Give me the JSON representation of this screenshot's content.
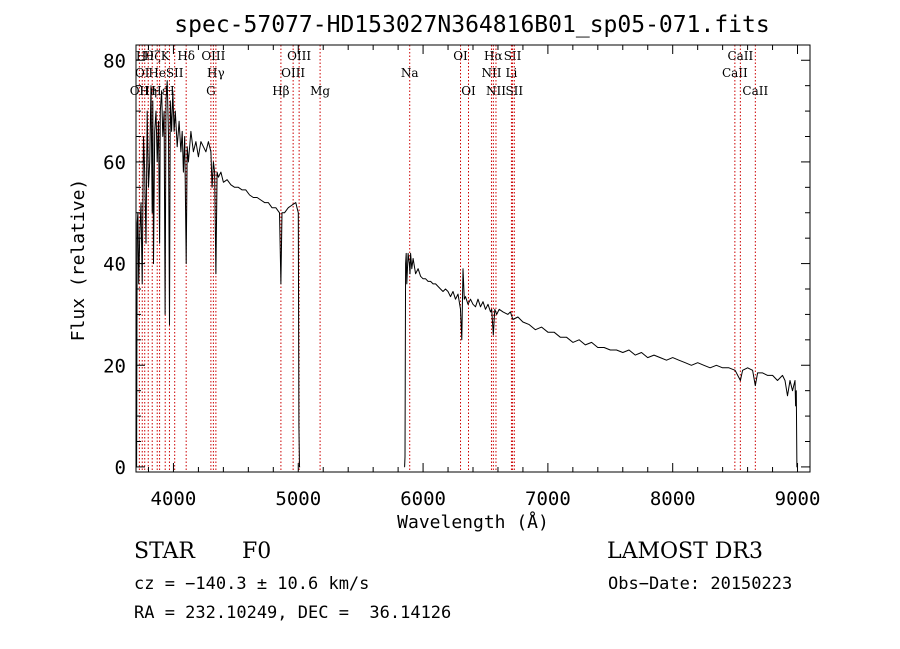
{
  "chart_data": {
    "type": "line",
    "title": "spec-57077-HD153027N364816B01_sp05-071.fits",
    "xlabel": "Wavelength (Å)",
    "ylabel": "Flux (relative)",
    "xlim": [
      3700,
      9100
    ],
    "ylim": [
      -1,
      83
    ],
    "xticks": [
      4000,
      5000,
      6000,
      7000,
      8000,
      9000
    ],
    "yticks": [
      0,
      20,
      40,
      60,
      80
    ],
    "grid": false,
    "series": [
      {
        "name": "spectrum",
        "segments": [
          {
            "x": [
              3700,
              3705,
              3710,
              3715,
              3722,
              3730,
              3740,
              3750,
              3760,
              3770,
              3780,
              3790,
              3800,
              3810,
              3820,
              3830,
              3835,
              3840,
              3850,
              3860,
              3870,
              3880,
              3889,
              3895,
              3905,
              3915,
              3925,
              3933,
              3940,
              3950,
              3960,
              3968,
              3975,
              3985,
              3995,
              4005,
              4015,
              4030,
              4045,
              4060,
              4070,
              4080,
              4090,
              4102,
              4110,
              4120,
              4140,
              4160,
              4180,
              4200,
              4220,
              4240,
              4260,
              4280,
              4300,
              4310,
              4320,
              4330,
              4340,
              4350,
              4360,
              4380,
              4400,
              4430,
              4460,
              4490,
              4520,
              4550,
              4580,
              4610,
              4640,
              4670,
              4700,
              4730,
              4760,
              4790,
              4820,
              4850,
              4861,
              4870,
              4890,
              4920,
              4950,
              4980,
              4990,
              5000,
              5005,
              5010,
              5015
            ],
            "y": [
              12,
              0,
              48,
              50,
              36,
              45,
              52,
              36,
              65,
              58,
              44,
              70,
              55,
              60,
              75,
              50,
              72,
              40,
              66,
              70,
              60,
              68,
              44,
              70,
              74,
              65,
              70,
              30,
              72,
              76,
              65,
              28,
              72,
              66,
              74,
              66,
              70,
              63,
              68,
              62,
              66,
              58,
              65,
              40,
              63,
              60,
              66,
              62,
              64,
              61,
              64,
              63,
              62,
              64,
              62,
              55,
              60,
              58,
              38,
              58,
              57,
              58,
              56,
              56.5,
              55.5,
              55,
              55,
              54.5,
              54.5,
              53.5,
              53,
              53,
              52.5,
              52,
              52,
              51,
              51,
              50,
              36,
              50,
              50,
              51,
              51.5,
              52,
              51,
              50,
              8,
              0,
              0
            ]
          },
          {
            "x": [
              5850,
              5852,
              5855,
              5860,
              5865,
              5870,
              5880,
              5890,
              5895,
              5900,
              5910,
              5920,
              5940,
              5960,
              5980,
              6000,
              6020,
              6040,
              6060,
              6080,
              6100,
              6120,
              6140,
              6160,
              6180,
              6200,
              6220,
              6240,
              6260,
              6280,
              6300,
              6310,
              6320,
              6330,
              6340,
              6360,
              6380,
              6400,
              6420,
              6440,
              6460,
              6480,
              6500,
              6520,
              6540,
              6550,
              6563,
              6575,
              6590,
              6610,
              6640,
              6680,
              6700,
              6720,
              6760,
              6800,
              6850,
              6900,
              6950,
              7000,
              7050,
              7100,
              7150,
              7200,
              7250,
              7300,
              7350,
              7400,
              7450,
              7500,
              7550,
              7600,
              7650,
              7700,
              7750,
              7800,
              7850,
              7900,
              7950,
              8000,
              8050,
              8100,
              8150,
              8200,
              8250,
              8300,
              8350,
              8400,
              8450,
              8500,
              8542,
              8560,
              8600,
              8640,
              8662,
              8680,
              8720,
              8760,
              8800,
              8840,
              8880,
              8900,
              8920,
              8940,
              8960,
              8980,
              8985,
              8990,
              8995,
              9000
            ],
            "y": [
              0,
              0,
              2,
              40,
              42,
              36,
              42,
              40,
              38,
              42,
              39,
              41,
              38,
              39,
              37.5,
              37,
              37,
              36.5,
              36.5,
              36,
              36,
              35.5,
              35,
              34.5,
              35,
              34.5,
              33.5,
              34.5,
              33,
              34,
              31,
              25,
              39,
              33,
              33.5,
              32,
              33,
              32,
              31.5,
              33,
              31.5,
              32.5,
              31,
              32,
              30.5,
              31,
              26,
              31,
              30,
              31,
              30.5,
              30,
              30.5,
              29,
              29.5,
              28.5,
              28,
              27,
              27.5,
              26.5,
              26.5,
              25.5,
              25.5,
              24.5,
              25,
              24,
              24.5,
              23.5,
              23.5,
              23,
              23,
              22.5,
              23,
              22,
              22.5,
              21.5,
              22,
              21.5,
              21,
              21.5,
              21,
              20.5,
              20,
              20.5,
              20,
              19.5,
              20,
              19.5,
              19.5,
              19,
              17,
              19,
              19.5,
              19,
              16,
              18.5,
              18.5,
              18,
              18,
              17,
              18,
              17,
              14,
              17,
              15,
              17,
              12,
              15,
              0,
              0
            ]
          }
        ]
      }
    ],
    "lines": [
      {
        "x": 3727,
        "label": "OII",
        "row": 3
      },
      {
        "x": 3750,
        "label": "OI",
        "row": 2
      },
      {
        "x": 3770,
        "label": "Hθ",
        "row": 1
      },
      {
        "x": 3798,
        "label": "Hη",
        "row": 3
      },
      {
        "x": 3830,
        "label": "Hζ",
        "row": 1
      },
      {
        "x": 3870,
        "label": "He",
        "row": 2
      },
      {
        "x": 3889,
        "label": "Hε",
        "row": 3
      },
      {
        "x": 3934,
        "label": "K",
        "row": 1
      },
      {
        "x": 3968,
        "label": "H",
        "row": 3
      },
      {
        "x": 4010,
        "label": "SII",
        "row": 2
      },
      {
        "x": 4102,
        "label": "Hδ",
        "row": 1
      },
      {
        "x": 4300,
        "label": "G",
        "row": 3
      },
      {
        "x": 4320,
        "label": "OIII",
        "row": 1
      },
      {
        "x": 4340,
        "label": "Hγ",
        "row": 2
      },
      {
        "x": 4861,
        "label": "Hβ",
        "row": 3
      },
      {
        "x": 4959,
        "label": "OIII",
        "row": 2
      },
      {
        "x": 5007,
        "label": "OIII",
        "row": 1
      },
      {
        "x": 5175,
        "label": "Mg",
        "row": 3
      },
      {
        "x": 5893,
        "label": "Na",
        "row": 2
      },
      {
        "x": 6300,
        "label": "OI",
        "row": 1
      },
      {
        "x": 6364,
        "label": "OI",
        "row": 3
      },
      {
        "x": 6548,
        "label": "NII",
        "row": 2
      },
      {
        "x": 6563,
        "label": "Hα",
        "row": 1
      },
      {
        "x": 6584,
        "label": "NII",
        "row": 3
      },
      {
        "x": 6708,
        "label": "Li",
        "row": 2
      },
      {
        "x": 6717,
        "label": "SII",
        "row": 1
      },
      {
        "x": 6731,
        "label": "SII",
        "row": 3
      },
      {
        "x": 8498,
        "label": "CaII",
        "row": 2
      },
      {
        "x": 8542,
        "label": "CaII",
        "row": 1
      },
      {
        "x": 8662,
        "label": "CaII",
        "row": 3
      }
    ]
  },
  "info": {
    "class": "STAR",
    "subclass": "F0",
    "survey": "LAMOST DR3",
    "cz": "cz = −140.3 ± 10.6 km/s",
    "obs_date": "Obs−Date: 20150223",
    "coords": "RA = 232.10249, DEC =  36.14126"
  },
  "colors": {
    "line_marker": "#cc0000",
    "spectrum": "#000000"
  }
}
